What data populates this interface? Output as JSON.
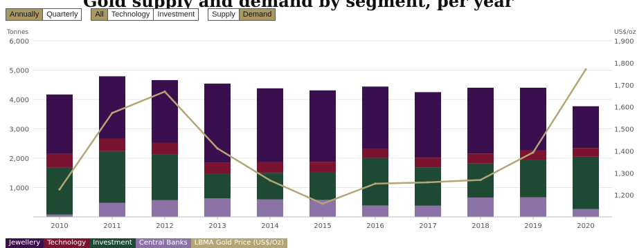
{
  "heading": "Gold supply and demand by segment, per year",
  "toolbar": {
    "period": [
      {
        "label": "Annually",
        "active": true
      },
      {
        "label": "Quarterly",
        "active": false
      }
    ],
    "segment": [
      {
        "label": "All",
        "active": true
      },
      {
        "label": "Technology",
        "active": false
      },
      {
        "label": "Investment",
        "active": false
      }
    ],
    "side": [
      {
        "label": "Supply",
        "active": false
      },
      {
        "label": "Demand",
        "active": true
      }
    ]
  },
  "colors": {
    "jewellery": "#3a0f4e",
    "technology": "#7a1430",
    "investment": "#1e4a33",
    "central_banks": "#8b73a6",
    "gold_price": "#b3a576",
    "grid": "#e6e6e6",
    "axis_text": "#555555"
  },
  "legend": [
    {
      "label": "Jewellery",
      "color": "#3a0f4e"
    },
    {
      "label": "Technology",
      "color": "#7a1430"
    },
    {
      "label": "Investment",
      "color": "#1e4a33"
    },
    {
      "label": "Central Banks",
      "color": "#8b73a6"
    },
    {
      "label": "LBMA Gold Price (US$/Oz)",
      "color": "#b3a576"
    }
  ],
  "chart_data": {
    "type": "bar",
    "stacked": true,
    "categories": [
      "2010",
      "2011",
      "2012",
      "2013",
      "2014",
      "2015",
      "2016",
      "2017",
      "2018",
      "2019",
      "2020"
    ],
    "y_left": {
      "label": "Tonnes",
      "min": 0,
      "max": 6000,
      "ticks": [
        "6,000",
        "5,000",
        "4,000",
        "3,000",
        "2,000",
        "1,000"
      ],
      "tick_values": [
        6000,
        5000,
        4000,
        3000,
        2000,
        1000
      ]
    },
    "y_right": {
      "label": "US$/oz",
      "min": 1100,
      "max": 1900,
      "ticks": [
        "1,900",
        "1,800",
        "1,700",
        "1,600",
        "1,500",
        "1,400",
        "1,300",
        "1,200"
      ],
      "tick_values": [
        1900,
        1800,
        1700,
        1600,
        1500,
        1400,
        1300,
        1200
      ]
    },
    "series": [
      {
        "name": "Central Banks",
        "color": "#8b73a6",
        "values": [
          80,
          480,
          570,
          630,
          600,
          580,
          390,
          380,
          660,
          670,
          270
        ]
      },
      {
        "name": "Investment",
        "color": "#1e4a33",
        "values": [
          1600,
          1760,
          1570,
          830,
          900,
          950,
          1620,
          1310,
          1160,
          1270,
          1780
        ]
      },
      {
        "name": "Technology",
        "color": "#7a1430",
        "values": [
          470,
          430,
          390,
          380,
          370,
          350,
          320,
          330,
          340,
          330,
          300
        ]
      },
      {
        "name": "Jewellery",
        "color": "#3a0f4e",
        "values": [
          2020,
          2120,
          2130,
          2700,
          2510,
          2430,
          2110,
          2230,
          2240,
          2130,
          1420
        ]
      }
    ],
    "line": {
      "name": "LBMA Gold Price (US$/Oz)",
      "color": "#b3a576",
      "axis": "right",
      "values": [
        1225,
        1572,
        1669,
        1411,
        1266,
        1160,
        1251,
        1257,
        1268,
        1393,
        1770
      ]
    },
    "grid": true,
    "legend_position": "bottom-left"
  }
}
